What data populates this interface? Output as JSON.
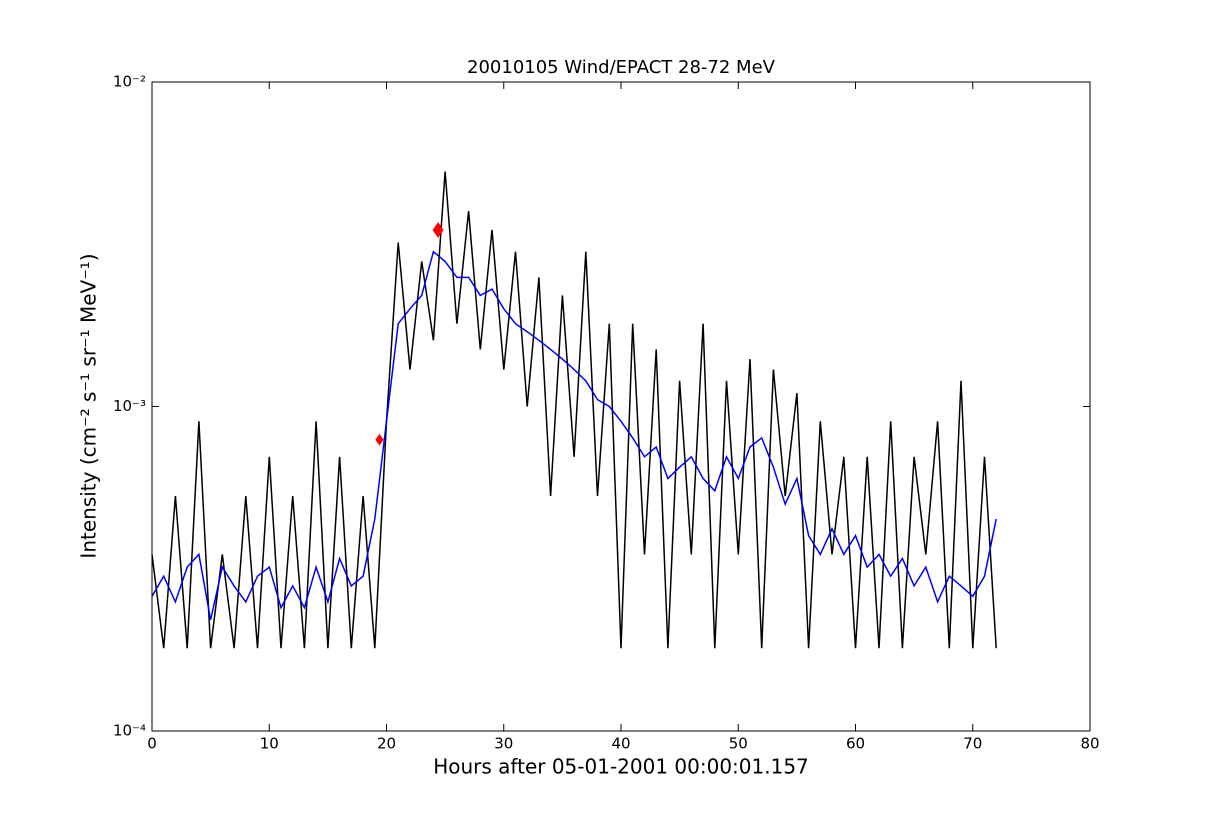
{
  "chart_data": {
    "type": "line",
    "title": "20010105 Wind/EPACT 28-72 MeV",
    "xlabel": "Hours after 05-01-2001 00:00:01.157",
    "ylabel": "Intensity (cm⁻² s⁻¹ sr⁻¹ MeV⁻¹)",
    "log_y": true,
    "xlim": [
      0,
      80
    ],
    "xticks": [
      0,
      10,
      20,
      30,
      40,
      50,
      60,
      70,
      80
    ],
    "ylim": [
      0.0001,
      0.01
    ],
    "yticks": [
      {
        "value": 0.0001,
        "label": "10⁻⁴"
      },
      {
        "value": 0.001,
        "label": "10⁻³"
      },
      {
        "value": 0.01,
        "label": "10⁻²"
      }
    ],
    "x": [
      0,
      1,
      2,
      3,
      4,
      5,
      6,
      7,
      8,
      9,
      10,
      11,
      12,
      13,
      14,
      15,
      16,
      17,
      18,
      19,
      20,
      21,
      22,
      23,
      24,
      25,
      26,
      27,
      28,
      29,
      30,
      31,
      32,
      33,
      34,
      35,
      36,
      37,
      38,
      39,
      40,
      41,
      42,
      43,
      44,
      45,
      46,
      47,
      48,
      49,
      50,
      51,
      52,
      53,
      54,
      55,
      56,
      57,
      58,
      59,
      60,
      61,
      62,
      63,
      64,
      65,
      66,
      67,
      68,
      69,
      70,
      71,
      72
    ],
    "series": [
      {
        "color": "#000000",
        "values": [
          0.00035,
          0.00018,
          0.00053,
          0.00018,
          0.0009,
          0.00018,
          0.00035,
          0.00018,
          0.00053,
          0.00018,
          0.0007,
          0.00018,
          0.00053,
          0.00018,
          0.0009,
          0.00018,
          0.0007,
          0.00018,
          0.00053,
          0.00018,
          0.0009,
          0.0032,
          0.0013,
          0.0028,
          0.0016,
          0.0053,
          0.0018,
          0.004,
          0.0015,
          0.0035,
          0.0013,
          0.003,
          0.001,
          0.0025,
          0.00053,
          0.0022,
          0.0007,
          0.003,
          0.00053,
          0.0018,
          0.00018,
          0.0018,
          0.00035,
          0.0015,
          0.00018,
          0.0012,
          0.00035,
          0.0018,
          0.00018,
          0.0012,
          0.00035,
          0.0014,
          0.00018,
          0.0013,
          0.00053,
          0.0011,
          0.00018,
          0.0009,
          0.00035,
          0.0007,
          0.00018,
          0.0007,
          0.00018,
          0.0009,
          0.00018,
          0.0007,
          0.00035,
          0.0009,
          0.00018,
          0.0012,
          0.00018,
          0.0007,
          0.00018
        ]
      },
      {
        "color": "#0000ff",
        "values": [
          0.00026,
          0.0003,
          0.00025,
          0.00032,
          0.00035,
          0.00022,
          0.00032,
          0.00028,
          0.00025,
          0.0003,
          0.00032,
          0.00024,
          0.00028,
          0.00024,
          0.00032,
          0.00025,
          0.00034,
          0.00028,
          0.0003,
          0.00045,
          0.0009,
          0.0018,
          0.002,
          0.0022,
          0.003,
          0.0028,
          0.0025,
          0.0025,
          0.0022,
          0.0023,
          0.002,
          0.0018,
          0.0017,
          0.0016,
          0.0015,
          0.0014,
          0.0013,
          0.0012,
          0.00105,
          0.001,
          0.0009,
          0.0008,
          0.0007,
          0.00075,
          0.0006,
          0.00065,
          0.0007,
          0.0006,
          0.00055,
          0.0007,
          0.0006,
          0.00075,
          0.0008,
          0.00065,
          0.0005,
          0.0006,
          0.0004,
          0.00035,
          0.00042,
          0.00035,
          0.0004,
          0.00032,
          0.00035,
          0.0003,
          0.00034,
          0.00028,
          0.00032,
          0.00025,
          0.0003,
          0.00028,
          0.00026,
          0.0003,
          0.00045
        ]
      }
    ],
    "markers": {
      "color": "#ff0000",
      "x": [
        19.4,
        24.4
      ],
      "values": [
        0.00079,
        0.0035
      ]
    }
  }
}
